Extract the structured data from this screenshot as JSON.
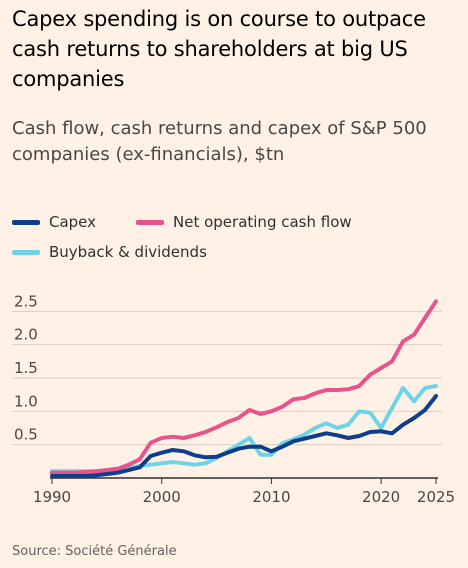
{
  "title": "Capex spending is on course to outpace cash returns to shareholders at big US companies",
  "subtitle": "Cash flow, cash returns and capex of S&P 500 companies (ex-financials), $tn",
  "source": "Source: Société Générale",
  "colors": {
    "capex": "#0f3f8a",
    "net_operating_cash_flow": "#e7548b",
    "buyback_dividends": "#6fd3e8",
    "background": "#fff1e5",
    "grid": "#d9cdc3",
    "axis": "#33302e"
  },
  "chart_data": {
    "type": "line",
    "title": "Capex spending is on course to outpace cash returns to shareholders at big US companies",
    "subtitle": "Cash flow, cash returns and capex of S&P 500 companies (ex-financials), $tn",
    "xlim": [
      1990,
      2025
    ],
    "ylim": [
      0,
      2.7
    ],
    "x_ticks": [
      1990,
      2000,
      2010,
      2020,
      2025
    ],
    "x_tick_labels": [
      "1990",
      "2000",
      "2010",
      "2020",
      "2025"
    ],
    "y_ticks": [
      0.5,
      1.0,
      1.5,
      2.0,
      2.5
    ],
    "y_tick_labels": [
      "0.5",
      "1.0",
      "1.5",
      "2.0",
      "2.5"
    ],
    "grid": true,
    "legend_position": "top-left",
    "series": [
      {
        "name": "Capex",
        "color_key": "capex",
        "points": [
          [
            1990,
            0.03
          ],
          [
            1991,
            0.03
          ],
          [
            1992,
            0.03
          ],
          [
            1993,
            0.03
          ],
          [
            1994,
            0.04
          ],
          [
            1995,
            0.06
          ],
          [
            1996,
            0.08
          ],
          [
            1997,
            0.12
          ],
          [
            1998,
            0.16
          ],
          [
            1999,
            0.33
          ],
          [
            2000,
            0.38
          ],
          [
            2001,
            0.42
          ],
          [
            2002,
            0.4
          ],
          [
            2003,
            0.34
          ],
          [
            2004,
            0.31
          ],
          [
            2005,
            0.32
          ],
          [
            2006,
            0.38
          ],
          [
            2007,
            0.44
          ],
          [
            2008,
            0.47
          ],
          [
            2009,
            0.47
          ],
          [
            2010,
            0.4
          ],
          [
            2011,
            0.47
          ],
          [
            2012,
            0.55
          ],
          [
            2013,
            0.59
          ],
          [
            2014,
            0.63
          ],
          [
            2015,
            0.67
          ],
          [
            2016,
            0.64
          ],
          [
            2017,
            0.6
          ],
          [
            2018,
            0.63
          ],
          [
            2019,
            0.69
          ],
          [
            2020,
            0.7
          ],
          [
            2021,
            0.67
          ],
          [
            2022,
            0.8
          ],
          [
            2023,
            0.9
          ],
          [
            2024,
            1.02
          ],
          [
            2025,
            1.23
          ]
        ]
      },
      {
        "name": "Net operating cash flow",
        "color_key": "net_operating_cash_flow",
        "points": [
          [
            1990,
            0.08
          ],
          [
            1991,
            0.08
          ],
          [
            1992,
            0.08
          ],
          [
            1993,
            0.09
          ],
          [
            1994,
            0.1
          ],
          [
            1995,
            0.12
          ],
          [
            1996,
            0.14
          ],
          [
            1997,
            0.2
          ],
          [
            1998,
            0.28
          ],
          [
            1999,
            0.53
          ],
          [
            2000,
            0.6
          ],
          [
            2001,
            0.62
          ],
          [
            2002,
            0.6
          ],
          [
            2003,
            0.64
          ],
          [
            2004,
            0.69
          ],
          [
            2005,
            0.76
          ],
          [
            2006,
            0.84
          ],
          [
            2007,
            0.9
          ],
          [
            2008,
            1.02
          ],
          [
            2009,
            0.96
          ],
          [
            2010,
            1.0
          ],
          [
            2011,
            1.07
          ],
          [
            2012,
            1.18
          ],
          [
            2013,
            1.2
          ],
          [
            2014,
            1.27
          ],
          [
            2015,
            1.32
          ],
          [
            2016,
            1.32
          ],
          [
            2017,
            1.33
          ],
          [
            2018,
            1.38
          ],
          [
            2019,
            1.55
          ],
          [
            2020,
            1.65
          ],
          [
            2021,
            1.75
          ],
          [
            2022,
            2.05
          ],
          [
            2023,
            2.15
          ],
          [
            2024,
            2.4
          ],
          [
            2025,
            2.65
          ]
        ]
      },
      {
        "name": "Buyback & dividends",
        "color_key": "buyback_dividends",
        "points": [
          [
            1990,
            0.1
          ],
          [
            1991,
            0.1
          ],
          [
            1992,
            0.1
          ],
          [
            1993,
            0.1
          ],
          [
            1994,
            0.1
          ],
          [
            1995,
            0.11
          ],
          [
            1996,
            0.13
          ],
          [
            1997,
            0.15
          ],
          [
            1998,
            0.18
          ],
          [
            1999,
            0.2
          ],
          [
            2000,
            0.22
          ],
          [
            2001,
            0.24
          ],
          [
            2002,
            0.22
          ],
          [
            2003,
            0.2
          ],
          [
            2004,
            0.22
          ],
          [
            2005,
            0.3
          ],
          [
            2006,
            0.4
          ],
          [
            2007,
            0.5
          ],
          [
            2008,
            0.6
          ],
          [
            2009,
            0.35
          ],
          [
            2010,
            0.35
          ],
          [
            2011,
            0.52
          ],
          [
            2012,
            0.58
          ],
          [
            2013,
            0.65
          ],
          [
            2014,
            0.75
          ],
          [
            2015,
            0.82
          ],
          [
            2016,
            0.75
          ],
          [
            2017,
            0.8
          ],
          [
            2018,
            1.0
          ],
          [
            2019,
            0.98
          ],
          [
            2020,
            0.75
          ],
          [
            2021,
            1.05
          ],
          [
            2022,
            1.35
          ],
          [
            2023,
            1.15
          ],
          [
            2024,
            1.35
          ],
          [
            2025,
            1.38
          ]
        ]
      }
    ]
  }
}
